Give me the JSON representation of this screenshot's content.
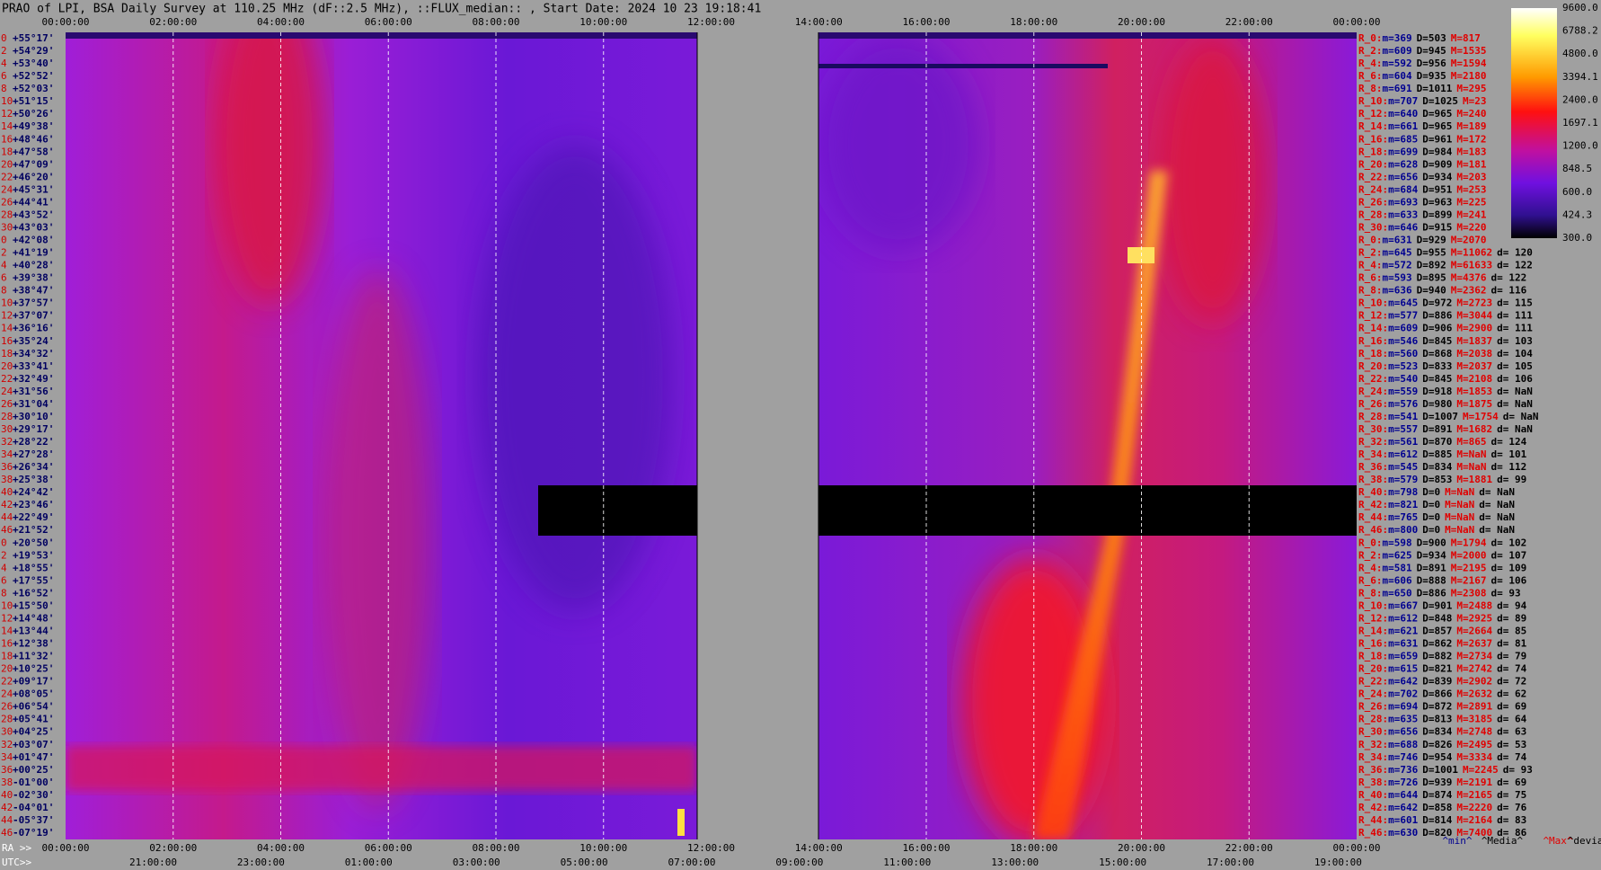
{
  "title": "PRAO of LPI, BSA Daily Survey at 110.25 MHz (dF::2.5 MHz), ::FLUX_median:: , Start Date: 2024 10 23 19:18:41",
  "top_times": [
    "00:00:00",
    "02:00:00",
    "04:00:00",
    "06:00:00",
    "08:00:00",
    "10:00:00",
    "12:00:00",
    "14:00:00",
    "16:00:00",
    "18:00:00",
    "20:00:00",
    "22:00:00",
    "00:00:00"
  ],
  "ra_label": "RA >>",
  "ra_times": [
    "00:00:00",
    "02:00:00",
    "04:00:00",
    "06:00:00",
    "08:00:00",
    "10:00:00",
    "12:00:00",
    "14:00:00",
    "16:00:00",
    "18:00:00",
    "20:00:00",
    "22:00:00",
    "00:00:00"
  ],
  "utc_label": "UTC>>",
  "utc_times": [
    "21:00:00",
    "23:00:00",
    "01:00:00",
    "03:00:00",
    "05:00:00",
    "07:00:00",
    "09:00:00",
    "11:00:00",
    "13:00:00",
    "15:00:00",
    "17:00:00",
    "19:00:00"
  ],
  "colorbar_labels": [
    "9600.0",
    "6788.2",
    "4800.0",
    "3394.1",
    "2400.0",
    "1697.1",
    "1200.0",
    "848.5",
    "600.0",
    "424.3",
    "300.0"
  ],
  "footer": [
    "^min^",
    "^Media^",
    "^Max^",
    "^devia^"
  ],
  "rows": [
    {
      "index": "0",
      "dec": "+55°17'"
    },
    {
      "index": "2",
      "dec": "+54°29'"
    },
    {
      "index": "4",
      "dec": "+53°40'"
    },
    {
      "index": "6",
      "dec": "+52°52'"
    },
    {
      "index": "8",
      "dec": "+52°03'"
    },
    {
      "index": "10",
      "dec": "+51°15'"
    },
    {
      "index": "12",
      "dec": "+50°26'"
    },
    {
      "index": "14",
      "dec": "+49°38'"
    },
    {
      "index": "16",
      "dec": "+48°46'"
    },
    {
      "index": "18",
      "dec": "+47°58'"
    },
    {
      "index": "20",
      "dec": "+47°09'"
    },
    {
      "index": "22",
      "dec": "+46°20'"
    },
    {
      "index": "24",
      "dec": "+45°31'"
    },
    {
      "index": "26",
      "dec": "+44°41'"
    },
    {
      "index": "28",
      "dec": "+43°52'"
    },
    {
      "index": "30",
      "dec": "+43°03'"
    },
    {
      "index": "0",
      "dec": "+42°08'"
    },
    {
      "index": "2",
      "dec": "+41°19'"
    },
    {
      "index": "4",
      "dec": "+40°28'"
    },
    {
      "index": "6",
      "dec": "+39°38'"
    },
    {
      "index": "8",
      "dec": "+38°47'"
    },
    {
      "index": "10",
      "dec": "+37°57'"
    },
    {
      "index": "12",
      "dec": "+37°07'"
    },
    {
      "index": "14",
      "dec": "+36°16'"
    },
    {
      "index": "16",
      "dec": "+35°24'"
    },
    {
      "index": "18",
      "dec": "+34°32'"
    },
    {
      "index": "20",
      "dec": "+33°41'"
    },
    {
      "index": "22",
      "dec": "+32°49'"
    },
    {
      "index": "24",
      "dec": "+31°56'"
    },
    {
      "index": "26",
      "dec": "+31°04'"
    },
    {
      "index": "28",
      "dec": "+30°10'"
    },
    {
      "index": "30",
      "dec": "+29°17'"
    },
    {
      "index": "32",
      "dec": "+28°22'"
    },
    {
      "index": "34",
      "dec": "+27°28'"
    },
    {
      "index": "36",
      "dec": "+26°34'"
    },
    {
      "index": "38",
      "dec": "+25°38'"
    },
    {
      "index": "40",
      "dec": "+24°42'"
    },
    {
      "index": "42",
      "dec": "+23°46'"
    },
    {
      "index": "44",
      "dec": "+22°49'"
    },
    {
      "index": "46",
      "dec": "+21°52'"
    },
    {
      "index": "0",
      "dec": "+20°50'"
    },
    {
      "index": "2",
      "dec": "+19°53'"
    },
    {
      "index": "4",
      "dec": "+18°55'"
    },
    {
      "index": "6",
      "dec": "+17°55'"
    },
    {
      "index": "8",
      "dec": "+16°52'"
    },
    {
      "index": "10",
      "dec": "+15°50'"
    },
    {
      "index": "12",
      "dec": "+14°48'"
    },
    {
      "index": "14",
      "dec": "+13°44'"
    },
    {
      "index": "16",
      "dec": "+12°38'"
    },
    {
      "index": "18",
      "dec": "+11°32'"
    },
    {
      "index": "20",
      "dec": "+10°25'"
    },
    {
      "index": "22",
      "dec": "+09°17'"
    },
    {
      "index": "24",
      "dec": "+08°05'"
    },
    {
      "index": "26",
      "dec": "+06°54'"
    },
    {
      "index": "28",
      "dec": "+05°41'"
    },
    {
      "index": "30",
      "dec": "+04°25'"
    },
    {
      "index": "32",
      "dec": "+03°07'"
    },
    {
      "index": "34",
      "dec": "+01°47'"
    },
    {
      "index": "36",
      "dec": "+00°25'"
    },
    {
      "index": "38",
      "dec": "-01°00'"
    },
    {
      "index": "40",
      "dec": "-02°30'"
    },
    {
      "index": "42",
      "dec": "-04°01'"
    },
    {
      "index": "44",
      "dec": "-05°37'"
    },
    {
      "index": "46",
      "dec": "-07°19'"
    }
  ],
  "stats": [
    [
      "R_0:",
      "m=369",
      "D=503",
      "M=817"
    ],
    [
      "R_2:",
      "m=609",
      "D=945",
      "M=1535"
    ],
    [
      "R_4:",
      "m=592",
      "D=956",
      "M=1594"
    ],
    [
      "R_6:",
      "m=604",
      "D=935",
      "M=2180"
    ],
    [
      "R_8:",
      "m=691",
      "D=1011",
      "M=295"
    ],
    [
      "R_10:",
      "m=707",
      "D=1025",
      "M=23"
    ],
    [
      "R_12:",
      "m=640",
      "D=965",
      "M=240"
    ],
    [
      "R_14:",
      "m=661",
      "D=965",
      "M=189"
    ],
    [
      "R_16:",
      "m=685",
      "D=961",
      "M=172"
    ],
    [
      "R_18:",
      "m=699",
      "D=984",
      "M=183"
    ],
    [
      "R_20:",
      "m=628",
      "D=909",
      "M=181"
    ],
    [
      "R_22:",
      "m=656",
      "D=934",
      "M=203"
    ],
    [
      "R_24:",
      "m=684",
      "D=951",
      "M=253"
    ],
    [
      "R_26:",
      "m=693",
      "D=963",
      "M=225"
    ],
    [
      "R_28:",
      "m=633",
      "D=899",
      "M=241"
    ],
    [
      "R_30:",
      "m=646",
      "D=915",
      "M=220"
    ],
    [
      "R_0:",
      "m=631",
      "D=929",
      "M=2070"
    ],
    [
      "R_2:",
      "m=645",
      "D=955",
      "M=11062",
      "d= 120"
    ],
    [
      "R_4:",
      "m=572",
      "D=892",
      "M=61633",
      "d= 122"
    ],
    [
      "R_6:",
      "m=593",
      "D=895",
      "M=4376",
      "d= 122"
    ],
    [
      "R_8:",
      "m=636",
      "D=940",
      "M=2362",
      "d= 116"
    ],
    [
      "R_10:",
      "m=645",
      "D=972",
      "M=2723",
      "d= 115"
    ],
    [
      "R_12:",
      "m=577",
      "D=886",
      "M=3044",
      "d= 111"
    ],
    [
      "R_14:",
      "m=609",
      "D=906",
      "M=2900",
      "d= 111"
    ],
    [
      "R_16:",
      "m=546",
      "D=845",
      "M=1837",
      "d= 103"
    ],
    [
      "R_18:",
      "m=560",
      "D=868",
      "M=2038",
      "d= 104"
    ],
    [
      "R_20:",
      "m=523",
      "D=833",
      "M=2037",
      "d= 105"
    ],
    [
      "R_22:",
      "m=540",
      "D=845",
      "M=2108",
      "d= 106"
    ],
    [
      "R_24:",
      "m=559",
      "D=918",
      "M=1853",
      "d= NaN"
    ],
    [
      "R_26:",
      "m=576",
      "D=980",
      "M=1875",
      "d= NaN"
    ],
    [
      "R_28:",
      "m=541",
      "D=1007",
      "M=1754",
      "d= NaN"
    ],
    [
      "R_30:",
      "m=557",
      "D=891",
      "M=1682",
      "d= NaN"
    ],
    [
      "R_32:",
      "m=561",
      "D=870",
      "M=865",
      "d= 124"
    ],
    [
      "R_34:",
      "m=612",
      "D=885",
      "M=NaN",
      "d= 101"
    ],
    [
      "R_36:",
      "m=545",
      "D=834",
      "M=NaN",
      "d= 112"
    ],
    [
      "R_38:",
      "m=579",
      "D=853",
      "M=1881",
      "d= 99"
    ],
    [
      "R_40:",
      "m=798",
      "D=0",
      "M=NaN",
      "d= NaN"
    ],
    [
      "R_42:",
      "m=821",
      "D=0",
      "M=NaN",
      "d= NaN"
    ],
    [
      "R_44:",
      "m=765",
      "D=0",
      "M=NaN",
      "d= NaN"
    ],
    [
      "R_46:",
      "m=800",
      "D=0",
      "M=NaN",
      "d= NaN"
    ],
    [
      "R_0:",
      "m=598",
      "D=900",
      "M=1794",
      "d= 102"
    ],
    [
      "R_2:",
      "m=625",
      "D=934",
      "M=2000",
      "d= 107"
    ],
    [
      "R_4:",
      "m=581",
      "D=891",
      "M=2195",
      "d= 109"
    ],
    [
      "R_6:",
      "m=606",
      "D=888",
      "M=2167",
      "d= 106"
    ],
    [
      "R_8:",
      "m=650",
      "D=886",
      "M=2308",
      "d= 93"
    ],
    [
      "R_10:",
      "m=667",
      "D=901",
      "M=2488",
      "d= 94"
    ],
    [
      "R_12:",
      "m=612",
      "D=848",
      "M=2925",
      "d= 89"
    ],
    [
      "R_14:",
      "m=621",
      "D=857",
      "M=2664",
      "d= 85"
    ],
    [
      "R_16:",
      "m=631",
      "D=862",
      "M=2637",
      "d= 81"
    ],
    [
      "R_18:",
      "m=659",
      "D=882",
      "M=2734",
      "d= 79"
    ],
    [
      "R_20:",
      "m=615",
      "D=821",
      "M=2742",
      "d= 74"
    ],
    [
      "R_22:",
      "m=642",
      "D=839",
      "M=2902",
      "d= 72"
    ],
    [
      "R_24:",
      "m=702",
      "D=866",
      "M=2632",
      "d= 62"
    ],
    [
      "R_26:",
      "m=694",
      "D=872",
      "M=2891",
      "d= 69"
    ],
    [
      "R_28:",
      "m=635",
      "D=813",
      "M=3185",
      "d= 64"
    ],
    [
      "R_30:",
      "m=656",
      "D=834",
      "M=2748",
      "d= 63"
    ],
    [
      "R_32:",
      "m=688",
      "D=826",
      "M=2495",
      "d= 53"
    ],
    [
      "R_34:",
      "m=746",
      "D=954",
      "M=3334",
      "d= 74"
    ],
    [
      "R_36:",
      "m=736",
      "D=1001",
      "M=2245",
      "d= 93"
    ],
    [
      "R_38:",
      "m=726",
      "D=939",
      "M=2191",
      "d= 69"
    ],
    [
      "R_40:",
      "m=644",
      "D=874",
      "M=2165",
      "d= 75"
    ],
    [
      "R_42:",
      "m=642",
      "D=858",
      "M=2220",
      "d= 76"
    ],
    [
      "R_44:",
      "m=601",
      "D=814",
      "M=2164",
      "d= 83"
    ],
    [
      "R_46:",
      "m=630",
      "D=820",
      "M=7400",
      "d= 86"
    ]
  ]
}
